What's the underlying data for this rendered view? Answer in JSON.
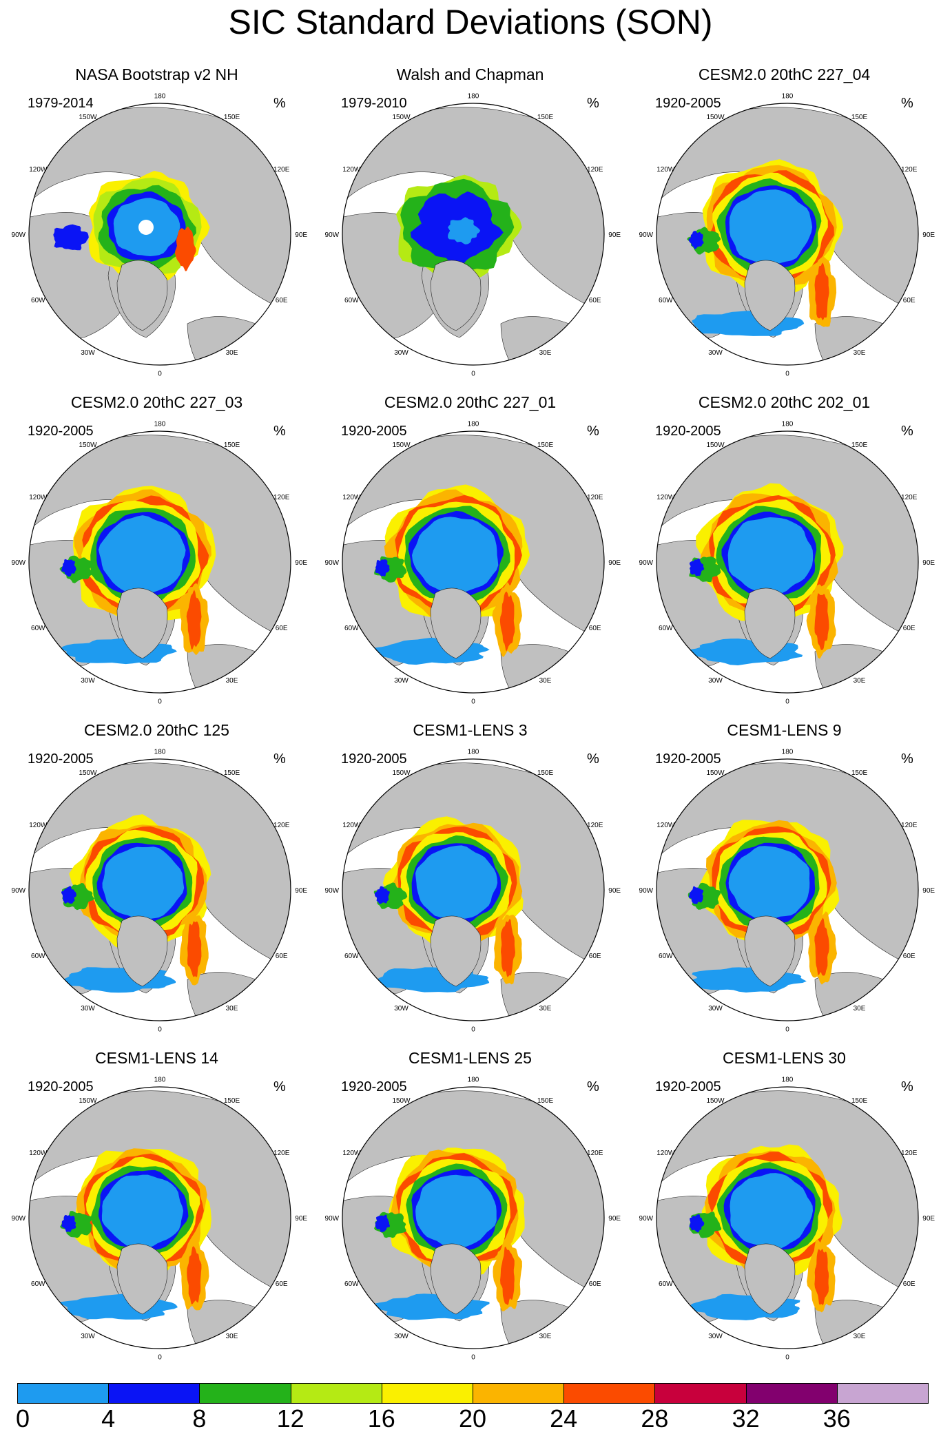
{
  "title": "SIC Standard Deviations (SON)",
  "units_symbol": "%",
  "longitude_labels": {
    "north": "180",
    "nnw": "150W",
    "nne": "150E",
    "wnw": "120W",
    "ene": "120E",
    "west": "90W",
    "east": "90E",
    "wsw": "60W",
    "ese": "60E",
    "ssw": "30W",
    "sse": "30E",
    "south": "0"
  },
  "panels": [
    {
      "title": "NASA Bootstrap v2 NH",
      "period": "1979-2014",
      "style": "obs-nasa"
    },
    {
      "title": "Walsh and Chapman",
      "period": "1979-2010",
      "style": "obs-walsh"
    },
    {
      "title": "CESM2.0 20thC 227_04",
      "period": "1920-2005",
      "style": "model-a"
    },
    {
      "title": "CESM2.0 20thC 227_03",
      "period": "1920-2005",
      "style": "model-b"
    },
    {
      "title": "CESM2.0 20thC 227_01",
      "period": "1920-2005",
      "style": "model-b"
    },
    {
      "title": "CESM2.0 20thC 202_01",
      "period": "1920-2005",
      "style": "model-b"
    },
    {
      "title": "CESM2.0 20thC 125",
      "period": "1920-2005",
      "style": "model-c"
    },
    {
      "title": "CESM1-LENS 3",
      "period": "1920-2005",
      "style": "model-c"
    },
    {
      "title": "CESM1-LENS 9",
      "period": "1920-2005",
      "style": "model-c"
    },
    {
      "title": "CESM1-LENS 14",
      "period": "1920-2005",
      "style": "model-c"
    },
    {
      "title": "CESM1-LENS 25",
      "period": "1920-2005",
      "style": "model-c"
    },
    {
      "title": "CESM1-LENS 30",
      "period": "1920-2005",
      "style": "model-a"
    }
  ],
  "colorbar": {
    "labels": [
      "0",
      "4",
      "8",
      "12",
      "16",
      "20",
      "24",
      "28",
      "32",
      "36"
    ],
    "colors": [
      "#1e9bf0",
      "#0a14f5",
      "#24b21a",
      "#b5ea14",
      "#faf000",
      "#fbb400",
      "#fb4b00",
      "#c8003c",
      "#82006e",
      "#c8a5d2"
    ]
  },
  "colors": {
    "land": "#c0c0c0",
    "ocean": "#ffffff",
    "outline": "#000000"
  }
}
